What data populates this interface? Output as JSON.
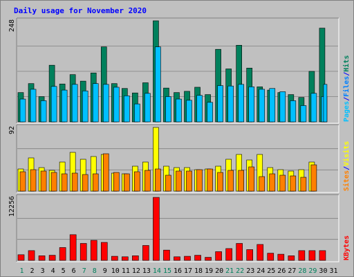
{
  "chart_data": {
    "type": "bar",
    "title": "Daily usage for November 2020",
    "categories": [
      "1",
      "2",
      "3",
      "4",
      "5",
      "6",
      "7",
      "8",
      "9",
      "10",
      "11",
      "12",
      "13",
      "14",
      "15",
      "16",
      "17",
      "18",
      "19",
      "20",
      "21",
      "22",
      "23",
      "24",
      "25",
      "26",
      "27",
      "28",
      "29",
      "30",
      "31"
    ],
    "weekend_days": [
      "1",
      "7",
      "8",
      "14",
      "15",
      "21",
      "22",
      "28",
      "29"
    ],
    "panels": [
      {
        "id": "hits-files-pages",
        "max_label": "248",
        "ymax": 248,
        "series": [
          {
            "name": "Hits",
            "color": "#00805c",
            "values": [
              72,
              94,
              62,
              139,
              93,
              116,
              100,
              120,
              184,
              94,
              82,
              71,
              96,
              248,
              83,
              72,
              75,
              85,
              67,
              178,
              130,
              188,
              132,
              86,
              78,
              72,
              67,
              60,
              124,
              230,
              0
            ]
          },
          {
            "name": "Files",
            "color": "#00c0ff",
            "values": [
              56,
              80,
              52,
              87,
              78,
              92,
              76,
              94,
              92,
              85,
              64,
              44,
              70,
              184,
              62,
              56,
              53,
              65,
              48,
              89,
              88,
              92,
              86,
              80,
              82,
              74,
              52,
              40,
              70,
              62,
              0
            ]
          },
          {
            "name": "Pages",
            "color": "#00c0ff",
            "values": [
              0,
              0,
              0,
              0,
              0,
              0,
              0,
              0,
              0,
              0,
              0,
              0,
              0,
              0,
              0,
              0,
              0,
              0,
              0,
              0,
              0,
              0,
              0,
              0,
              0,
              0,
              0,
              0,
              0,
              92,
              0
            ]
          }
        ],
        "legend": [
          "Pages",
          "/",
          "Files",
          "/",
          "Hits"
        ],
        "legend_colors": [
          "#00c0ff",
          "#0000ff",
          "#0080ff",
          "#0000ff",
          "#00805c"
        ]
      },
      {
        "id": "visits-sites",
        "max_label": "92",
        "ymax": 92,
        "series": [
          {
            "name": "Visits",
            "color": "#ffff00",
            "values": [
              32,
              48,
              34,
              30,
              42,
              56,
              46,
              50,
              53,
              26,
              25,
              36,
              42,
              92,
              36,
              34,
              34,
              31,
              32,
              36,
              46,
              53,
              45,
              53,
              34,
              31,
              29,
              31,
              42,
              0,
              0
            ]
          },
          {
            "name": "Sites",
            "color": "#ff8000",
            "values": [
              28,
              31,
              29,
              27,
              25,
              26,
              24,
              25,
              54,
              27,
              25,
              28,
              30,
              32,
              23,
              29,
              29,
              31,
              32,
              27,
              30,
              30,
              35,
              21,
              25,
              23,
              22,
              20,
              38,
              0,
              0
            ]
          }
        ],
        "legend": [
          "Sites",
          "/",
          "Visits"
        ],
        "legend_colors": [
          "#ff8000",
          "#0000ff",
          "#ffff00"
        ]
      },
      {
        "id": "kbytes",
        "max_label": "12256",
        "ymax": 12256,
        "series": [
          {
            "name": "KBytes",
            "color": "#ff0000",
            "values": [
              1100,
              1900,
              900,
              1000,
              2500,
              5000,
              3300,
              3900,
              3500,
              800,
              700,
              900,
              2900,
              12256,
              2000,
              700,
              800,
              1000,
              600,
              1700,
              2300,
              3300,
              2100,
              3100,
              1400,
              1200,
              900,
              1900,
              1900,
              1900,
              0
            ]
          }
        ],
        "legend": [
          "KBytes"
        ],
        "legend_colors": [
          "#ff0000"
        ]
      }
    ]
  }
}
